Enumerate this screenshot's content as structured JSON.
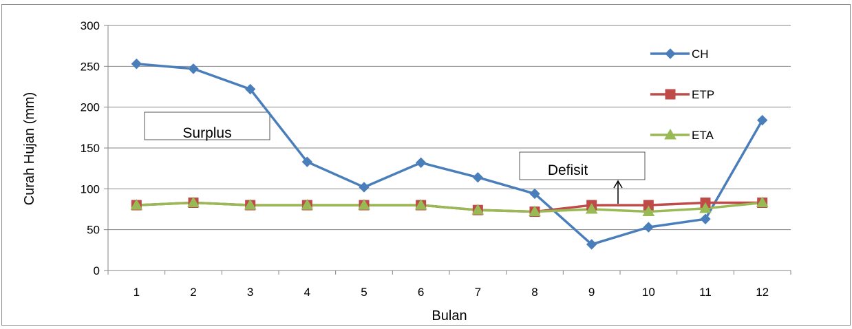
{
  "chart_data": {
    "type": "line",
    "title": "",
    "xlabel": "Bulan",
    "ylabel": "Curah Hujan (mm)",
    "x": [
      "1",
      "2",
      "3",
      "4",
      "5",
      "6",
      "7",
      "8",
      "9",
      "10",
      "11",
      "12"
    ],
    "ylim": [
      0,
      300
    ],
    "yticks": [
      "0",
      "50",
      "100",
      "150",
      "200",
      "250",
      "300"
    ],
    "grid": "horizontal",
    "legend_position": "right",
    "series": [
      {
        "name": "CH",
        "color": "#4a7ebb",
        "marker": "diamond",
        "values": [
          253,
          247,
          222,
          133,
          102,
          132,
          114,
          94,
          32,
          53,
          63,
          184
        ]
      },
      {
        "name": "ETP",
        "color": "#be4b48",
        "marker": "square",
        "values": [
          80,
          83,
          80,
          80,
          80,
          80,
          74,
          72,
          80,
          80,
          83,
          83
        ]
      },
      {
        "name": "ETA",
        "color": "#98b954",
        "marker": "triangle",
        "values": [
          80,
          83,
          80,
          80,
          80,
          80,
          74,
          72,
          75,
          72,
          76,
          83
        ]
      }
    ],
    "annotations": [
      {
        "text": "Surplus"
      },
      {
        "text": "Defisit"
      }
    ]
  }
}
